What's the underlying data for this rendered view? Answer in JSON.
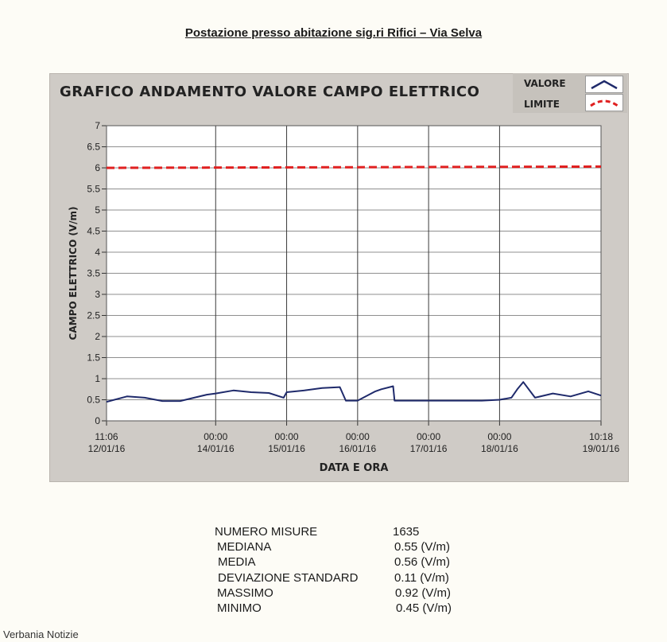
{
  "document": {
    "title": "Postazione presso abitazione sig.ri Rifici – Via Selva",
    "footer": "Verbania Notizie"
  },
  "colors": {
    "value_line": "#1f2a6b",
    "limit_line": "#e02020",
    "plot_bg": "#ffffff",
    "panel_bg": "#cfcbc6"
  },
  "chart_data": {
    "type": "line",
    "title": "GRAFICO ANDAMENTO VALORE CAMPO ELETTRICO",
    "xlabel": "DATA E ORA",
    "ylabel": "CAMPO ELETTRICO (V/m)",
    "ylim": [
      0,
      7
    ],
    "y_ticks": [
      "0",
      "0.5",
      "1",
      "1.5",
      "2",
      "2.5",
      "3",
      "3.5",
      "4",
      "4.5",
      "5",
      "5.5",
      "6",
      "6.5",
      "7"
    ],
    "xlim": [
      "12/01/16 11:06",
      "19/01/16 10:18"
    ],
    "x_ticks": [
      {
        "time": "11:06",
        "date": "12/01/16"
      },
      {
        "time": "00:00",
        "date": "14/01/16"
      },
      {
        "time": "00:00",
        "date": "15/01/16"
      },
      {
        "time": "00:00",
        "date": "16/01/16"
      },
      {
        "time": "00:00",
        "date": "17/01/16"
      },
      {
        "time": "00:00",
        "date": "18/01/16"
      },
      {
        "time": "10:18",
        "date": "19/01/16"
      }
    ],
    "grid": true,
    "legend": "top-right",
    "series": [
      {
        "name": "VALORE",
        "style": "solid",
        "x": [
          "12/01/16 11:06",
          "12/01/16 18:00",
          "13/01/16 00:00",
          "13/01/16 06:00",
          "13/01/16 12:00",
          "13/01/16 21:00",
          "14/01/16 00:00",
          "14/01/16 06:00",
          "14/01/16 12:00",
          "14/01/16 18:00",
          "14/01/16 23:00",
          "15/01/16 00:00",
          "15/01/16 06:00",
          "15/01/16 12:00",
          "15/01/16 18:00",
          "15/01/16 20:00",
          "16/01/16 00:00",
          "16/01/16 06:00",
          "16/01/16 08:00",
          "16/01/16 12:00",
          "16/01/16 12:30",
          "17/01/16 00:00",
          "17/01/16 06:00",
          "17/01/16 12:00",
          "17/01/16 18:00",
          "18/01/16 00:00",
          "18/01/16 04:00",
          "18/01/16 06:00",
          "18/01/16 08:00",
          "18/01/16 12:00",
          "18/01/16 18:00",
          "19/01/16 00:00",
          "19/01/16 06:00",
          "19/01/16 10:18"
        ],
        "y": [
          0.45,
          0.58,
          0.55,
          0.47,
          0.47,
          0.62,
          0.65,
          0.72,
          0.68,
          0.66,
          0.55,
          0.68,
          0.72,
          0.78,
          0.8,
          0.48,
          0.48,
          0.7,
          0.75,
          0.82,
          0.48,
          0.48,
          0.48,
          0.48,
          0.48,
          0.5,
          0.55,
          0.75,
          0.92,
          0.55,
          0.65,
          0.58,
          0.7,
          0.6
        ]
      },
      {
        "name": "LIMITE",
        "style": "dashed",
        "x": [
          "12/01/16 11:06",
          "19/01/16 10:18"
        ],
        "y": [
          6.0,
          6.03
        ]
      }
    ]
  },
  "stats": [
    {
      "label": "NUMERO MISURE",
      "value": "1635"
    },
    {
      "label": "MEDIANA",
      "value": "0.55 (V/m)"
    },
    {
      "label": "MEDIA",
      "value": "0.56 (V/m)"
    },
    {
      "label": "DEVIAZIONE STANDARD",
      "value": "0.11 (V/m)"
    },
    {
      "label": "MASSIMO",
      "value": "0.92 (V/m)"
    },
    {
      "label": "MINIMO",
      "value": "0.45 (V/m)"
    }
  ]
}
